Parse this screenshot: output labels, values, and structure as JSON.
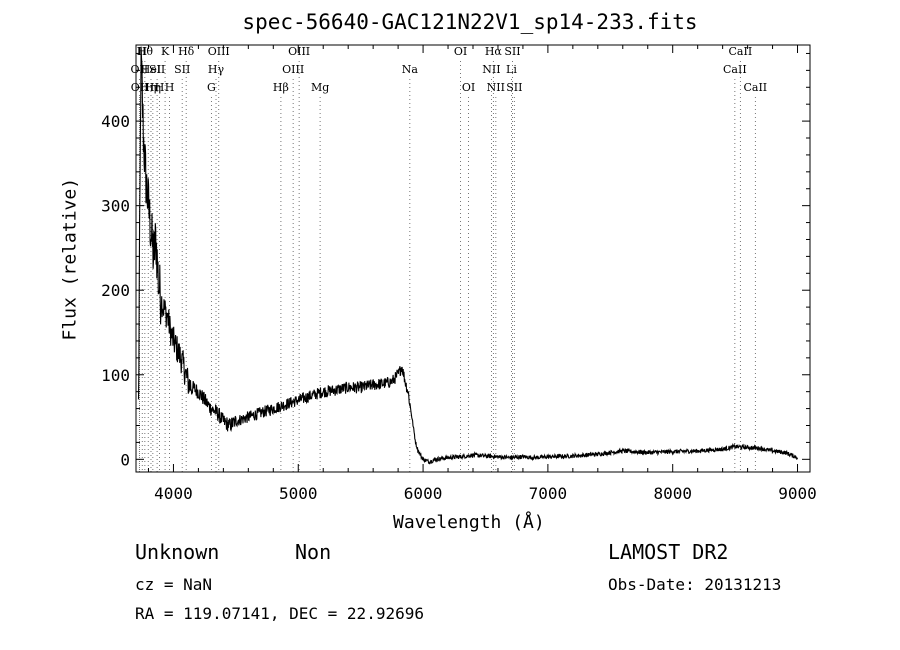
{
  "chart_data": {
    "type": "line",
    "title": "spec-56640-GAC121N22V1_sp14-233.fits",
    "xlabel": "Wavelength (Å)",
    "ylabel": "Flux (relative)",
    "xlim": [
      3700,
      9100
    ],
    "ylim": [
      -15,
      490
    ],
    "xticks": [
      4000,
      5000,
      6000,
      7000,
      8000,
      9000
    ],
    "yticks": [
      0,
      100,
      200,
      300,
      400
    ],
    "series": [
      {
        "x": [
          3720,
          3740,
          3760,
          3780,
          3800,
          3820,
          3840,
          3860,
          3880,
          3900,
          3920,
          3950,
          3980,
          4000,
          4030,
          4060,
          4080,
          4100,
          4120,
          4150,
          4200,
          4250,
          4300,
          4350,
          4400,
          4450,
          4500,
          4600,
          4700,
          4800,
          4900,
          5000,
          5100,
          5200,
          5300,
          5400,
          5500,
          5600,
          5700,
          5750,
          5800,
          5830,
          5860,
          5880,
          5900,
          5920,
          5940,
          5960,
          5980,
          6000,
          6050,
          6100,
          6200,
          6300,
          6400,
          6500,
          6600,
          6700,
          6800,
          6900,
          7000,
          7200,
          7400,
          7600,
          7800,
          8000,
          8200,
          8400,
          8500,
          8600,
          8700,
          8800,
          8900,
          9000
        ],
        "y": [
          60,
          480,
          380,
          330,
          300,
          270,
          240,
          260,
          210,
          190,
          180,
          170,
          150,
          140,
          130,
          120,
          110,
          100,
          90,
          85,
          80,
          70,
          60,
          55,
          45,
          40,
          45,
          50,
          55,
          60,
          65,
          70,
          75,
          80,
          82,
          85,
          85,
          88,
          90,
          92,
          100,
          110,
          90,
          80,
          60,
          40,
          20,
          10,
          5,
          0,
          -3,
          0,
          2,
          3,
          5,
          4,
          3,
          2,
          3,
          2,
          3,
          4,
          6,
          10,
          8,
          9,
          10,
          12,
          15,
          14,
          13,
          10,
          8,
          2
        ]
      }
    ],
    "lines": [
      {
        "x": 3727,
        "label": "OII",
        "row": 2
      },
      {
        "x": 3729,
        "label": "OII",
        "row": 3
      },
      {
        "x": 3750,
        "label": "H",
        "row": 1
      },
      {
        "x": 3771,
        "label": "Hθ",
        "row": 1
      },
      {
        "x": 3798,
        "label": "Hη",
        "row": 3
      },
      {
        "x": 3820,
        "label": "HeI",
        "row": 2
      },
      {
        "x": 3835,
        "label": "Hη",
        "row": 3
      },
      {
        "x": 3869,
        "label": "SII",
        "row": 2
      },
      {
        "x": 3889,
        "label": "H",
        "row": 3
      },
      {
        "x": 3933,
        "label": "K",
        "row": 1
      },
      {
        "x": 3969,
        "label": "H",
        "row": 3
      },
      {
        "x": 4070,
        "label": "SII",
        "row": 2
      },
      {
        "x": 4102,
        "label": "Hδ",
        "row": 1
      },
      {
        "x": 4304,
        "label": "G",
        "row": 3
      },
      {
        "x": 4341,
        "label": "Hγ",
        "row": 2
      },
      {
        "x": 4363,
        "label": "OIII",
        "row": 1
      },
      {
        "x": 4861,
        "label": "Hβ",
        "row": 3
      },
      {
        "x": 4959,
        "label": "OIII",
        "row": 2
      },
      {
        "x": 5007,
        "label": "OIII",
        "row": 1
      },
      {
        "x": 5175,
        "label": "Mg",
        "row": 3
      },
      {
        "x": 5894,
        "label": "Na",
        "row": 2
      },
      {
        "x": 6300,
        "label": "OI",
        "row": 1
      },
      {
        "x": 6364,
        "label": "OI",
        "row": 3
      },
      {
        "x": 6548,
        "label": "NII",
        "row": 2
      },
      {
        "x": 6563,
        "label": "Hα",
        "row": 1
      },
      {
        "x": 6583,
        "label": "NII",
        "row": 3
      },
      {
        "x": 6708,
        "label": "Li",
        "row": 2
      },
      {
        "x": 6716,
        "label": "SII",
        "row": 1
      },
      {
        "x": 6731,
        "label": "SII",
        "row": 3
      },
      {
        "x": 8498,
        "label": "CaII",
        "row": 2
      },
      {
        "x": 8542,
        "label": "CaII",
        "row": 1
      },
      {
        "x": 8662,
        "label": "CaII",
        "row": 3
      }
    ]
  },
  "footer": {
    "class_label": "Unknown",
    "subclass_label": "Non",
    "survey": "LAMOST DR2",
    "cz": "cz = NaN",
    "obs_date": "Obs-Date: 20131213",
    "coords": "RA = 119.07141, DEC =  22.92696"
  }
}
